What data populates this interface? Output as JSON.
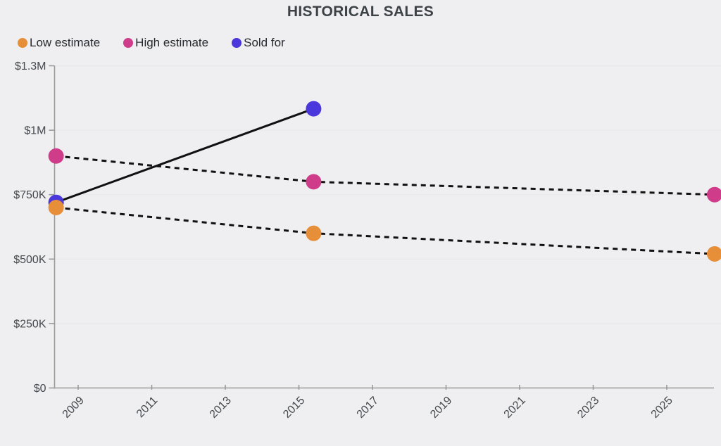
{
  "chart": {
    "title": "HISTORICAL SALES",
    "background_color": "#efeff1",
    "title_color": "#3d4247",
    "axis_color": "#9a9a9a",
    "grid_color": "#e8e8ea",
    "tick_label_color": "#45494e",
    "trend_line_color": "#111111"
  },
  "chart_data": {
    "type": "line",
    "title": "HISTORICAL SALES",
    "xlabel": "",
    "ylabel": "",
    "x_range": [
      2008.4,
      2026.3
    ],
    "x_ticks": [
      2009,
      2011,
      2013,
      2015,
      2017,
      2019,
      2021,
      2023,
      2025
    ],
    "x_label_rotation": -45,
    "y_ticks": [
      {
        "value": 0,
        "label": "$0"
      },
      {
        "value": 250000,
        "label": "$250K"
      },
      {
        "value": 500000,
        "label": "$500K"
      },
      {
        "value": 750000,
        "label": "$750K"
      },
      {
        "value": 1000000,
        "label": "$1M"
      },
      {
        "value": 1300000,
        "label": "$1.3M"
      }
    ],
    "grid": true,
    "legend_position": "top-left",
    "series": [
      {
        "name": "Low estimate",
        "color": "#E78F38",
        "line_style": "dashed",
        "points": [
          {
            "x": 2008.4,
            "y": 700000
          },
          {
            "x": 2015.4,
            "y": 600000
          },
          {
            "x": 2026.3,
            "y": 520000
          }
        ]
      },
      {
        "name": "High estimate",
        "color": "#CE3C8A",
        "line_style": "dashed",
        "points": [
          {
            "x": 2008.4,
            "y": 900000
          },
          {
            "x": 2015.4,
            "y": 800000
          },
          {
            "x": 2026.3,
            "y": 750000
          }
        ]
      },
      {
        "name": "Sold for",
        "color": "#4B38DC",
        "line_style": "solid",
        "points": [
          {
            "x": 2008.4,
            "y": 720000
          },
          {
            "x": 2015.4,
            "y": 1100000
          }
        ]
      }
    ]
  }
}
